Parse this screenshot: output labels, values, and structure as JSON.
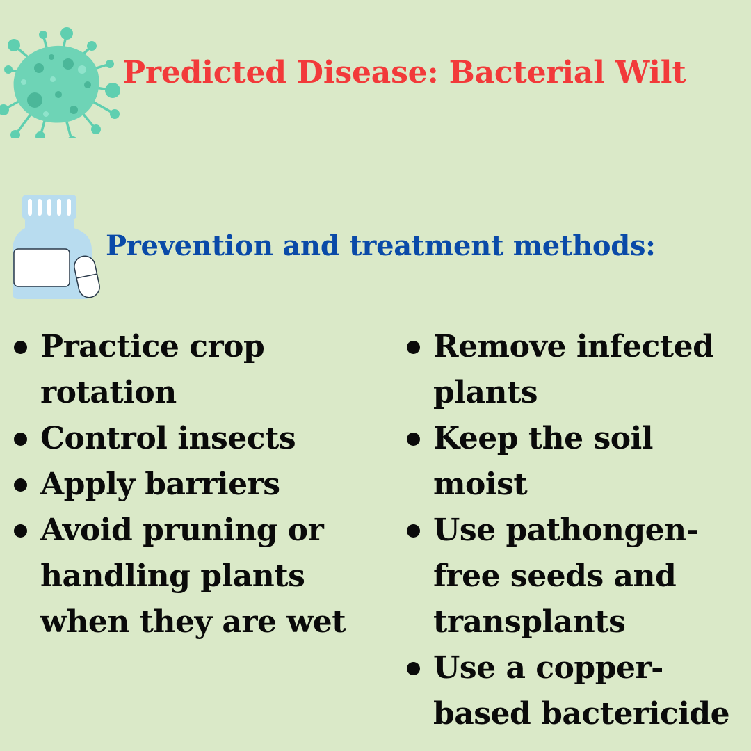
{
  "header": {
    "title": "Predicted Disease: Bacterial Wilt",
    "title_color": "#f23a3a",
    "virus_icon": "virus-icon",
    "virus_color": "#5fcfb0"
  },
  "section": {
    "heading": "Prevention and treatment methods:",
    "heading_color": "#0a4aa8",
    "bottle_icon": "medicine-bottle-icon",
    "bottle_color": "#b8dcef"
  },
  "background_color": "#dae9c8",
  "methods_left": [
    "Practice crop rotation",
    "Control insects",
    "Apply barriers",
    "Avoid pruning or handling plants when they are wet"
  ],
  "methods_right": [
    "Remove infected plants",
    "Keep the soil moist",
    "Use pathongen-free seeds and transplants",
    "Use a copper-based bactericide"
  ]
}
